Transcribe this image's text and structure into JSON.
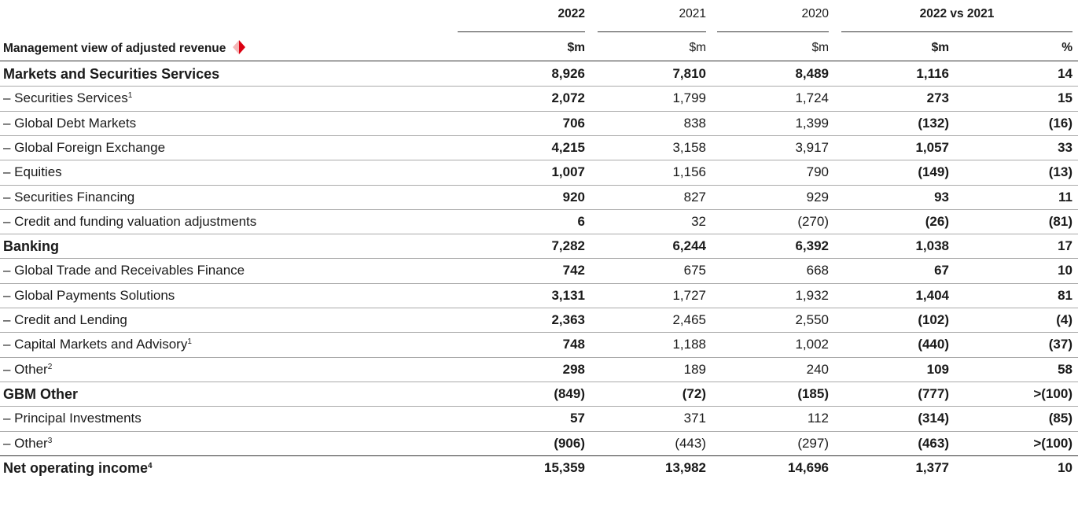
{
  "header": {
    "years": [
      "2022",
      "2021",
      "2020"
    ],
    "comparison": "2022 vs 2021",
    "row_label": "Management view of adjusted revenue",
    "units": [
      "$m",
      "$m",
      "$m",
      "$m",
      "%"
    ]
  },
  "table": {
    "rows": [
      {
        "type": "section",
        "label": "Markets and Securities Services",
        "cells": [
          "8,926",
          "7,810",
          "8,489",
          "1,116",
          "14"
        ]
      },
      {
        "type": "item",
        "label": "– Securities Services",
        "note": "1",
        "cells": [
          "2,072",
          "1,799",
          "1,724",
          "273",
          "15"
        ]
      },
      {
        "type": "item",
        "label": "– Global Debt Markets",
        "cells": [
          "706",
          "838",
          "1,399",
          "(132)",
          "(16)"
        ]
      },
      {
        "type": "item",
        "label": "– Global Foreign Exchange",
        "cells": [
          "4,215",
          "3,158",
          "3,917",
          "1,057",
          "33"
        ]
      },
      {
        "type": "item",
        "label": "– Equities",
        "cells": [
          "1,007",
          "1,156",
          "790",
          "(149)",
          "(13)"
        ]
      },
      {
        "type": "item",
        "label": "– Securities Financing",
        "cells": [
          "920",
          "827",
          "929",
          "93",
          "11"
        ]
      },
      {
        "type": "item",
        "label": "– Credit and funding valuation adjustments",
        "cells": [
          "6",
          "32",
          "(270)",
          "(26)",
          "(81)"
        ]
      },
      {
        "type": "section",
        "label": "Banking",
        "cells": [
          "7,282",
          "6,244",
          "6,392",
          "1,038",
          "17"
        ]
      },
      {
        "type": "item",
        "label": "– Global Trade and Receivables Finance",
        "cells": [
          "742",
          "675",
          "668",
          "67",
          "10"
        ]
      },
      {
        "type": "item",
        "label": "– Global Payments Solutions",
        "cells": [
          "3,131",
          "1,727",
          "1,932",
          "1,404",
          "81"
        ]
      },
      {
        "type": "item",
        "label": "– Credit and Lending",
        "cells": [
          "2,363",
          "2,465",
          "2,550",
          "(102)",
          "(4)"
        ]
      },
      {
        "type": "item",
        "label": "– Capital Markets and Advisory",
        "note": "1",
        "cells": [
          "748",
          "1,188",
          "1,002",
          "(440)",
          "(37)"
        ]
      },
      {
        "type": "item",
        "label": "– Other",
        "note": "2",
        "cells": [
          "298",
          "189",
          "240",
          "109",
          "58"
        ]
      },
      {
        "type": "section",
        "label": "GBM Other",
        "cells": [
          "(849)",
          "(72)",
          "(185)",
          "(777)",
          ">(100)"
        ]
      },
      {
        "type": "item",
        "label": "– Principal Investments",
        "cells": [
          "57",
          "371",
          "112",
          "(314)",
          "(85)"
        ]
      },
      {
        "type": "item",
        "label": "– Other",
        "note": "3",
        "cells": [
          "(906)",
          "(443)",
          "(297)",
          "(463)",
          ">(100)"
        ]
      },
      {
        "type": "total",
        "label": "Net operating income",
        "note": "4",
        "cells": [
          "15,359",
          "13,982",
          "14,696",
          "1,377",
          "10"
        ]
      }
    ]
  }
}
